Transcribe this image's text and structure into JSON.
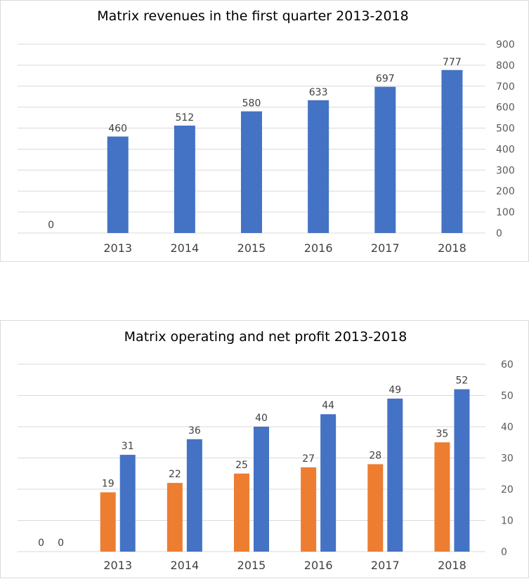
{
  "chart_data": [
    {
      "type": "bar",
      "title": "Matrix revenues in the first quarter 2013-2018",
      "categories": [
        "",
        "2013",
        "2014",
        "2015",
        "2016",
        "2017",
        "2018"
      ],
      "series": [
        {
          "values": [
            0,
            460,
            512,
            580,
            633,
            697,
            777
          ],
          "color": "#4472C4"
        }
      ],
      "ylim": [
        0,
        900
      ],
      "yticks": [
        "0",
        "100",
        "200",
        "300",
        "400",
        "500",
        "600",
        "700",
        "800",
        "900"
      ],
      "y_axis_side": "right",
      "grid": true,
      "legend": "none"
    },
    {
      "type": "bar",
      "title": "Matrix operating and net profit 2013-2018",
      "categories": [
        "",
        "2013",
        "2014",
        "2015",
        "2016",
        "2017",
        "2018"
      ],
      "series": [
        {
          "values": [
            0,
            19,
            22,
            25,
            27,
            28,
            35
          ],
          "color": "#ED7D31"
        },
        {
          "values": [
            0,
            31,
            36,
            40,
            44,
            49,
            52
          ],
          "color": "#4472C4"
        }
      ],
      "ylim": [
        0,
        60
      ],
      "yticks": [
        "0",
        "10",
        "20",
        "30",
        "40",
        "50",
        "60"
      ],
      "y_axis_side": "right",
      "grid": true,
      "legend": "none"
    }
  ]
}
